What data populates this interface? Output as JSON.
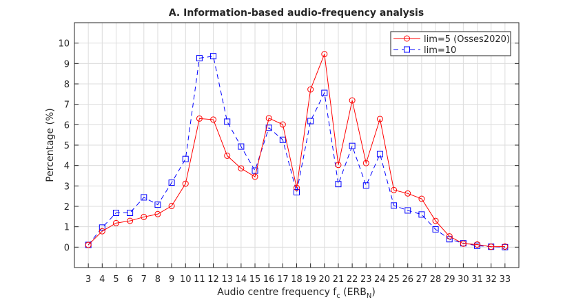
{
  "chart_data": {
    "type": "line",
    "title": "A. Information-based audio-frequency analysis",
    "xlabel": "Audio centre frequency f",
    "xlabel_sub": "c",
    "xlabel_unit_open": " (ERB",
    "xlabel_unit_sub": "N",
    "xlabel_unit_close": ")",
    "ylabel": "Percentage (%)",
    "xlim": [
      2,
      34
    ],
    "ylim": [
      -1,
      11
    ],
    "grid": true,
    "legend_position": "top-right",
    "x": [
      3,
      4,
      5,
      6,
      7,
      8,
      9,
      10,
      11,
      12,
      13,
      14,
      15,
      16,
      17,
      18,
      19,
      20,
      21,
      22,
      23,
      24,
      25,
      26,
      27,
      28,
      29,
      30,
      31,
      32,
      33
    ],
    "xticks": [
      3,
      4,
      5,
      6,
      7,
      8,
      9,
      10,
      11,
      12,
      13,
      14,
      15,
      16,
      17,
      18,
      19,
      20,
      21,
      22,
      23,
      24,
      25,
      26,
      27,
      28,
      29,
      30,
      31,
      32,
      33
    ],
    "yticks": [
      0,
      1,
      2,
      3,
      4,
      5,
      6,
      7,
      8,
      9,
      10
    ],
    "series": [
      {
        "name": "lim=5 (Osses2020)",
        "color": "#ff0000",
        "marker": "circle",
        "linestyle": "solid",
        "values": [
          0.11,
          0.78,
          1.18,
          1.29,
          1.48,
          1.62,
          2.02,
          3.11,
          6.3,
          6.25,
          4.48,
          3.86,
          3.45,
          6.32,
          6.01,
          2.91,
          7.73,
          9.46,
          4.03,
          7.19,
          4.12,
          6.28,
          2.8,
          2.63,
          2.37,
          1.29,
          0.53,
          0.17,
          0.13,
          0.02,
          0.03
        ]
      },
      {
        "name": "lim=10",
        "color": "#0000ff",
        "marker": "square",
        "linestyle": "dashed",
        "values": [
          0.11,
          0.96,
          1.68,
          1.68,
          2.44,
          2.08,
          3.16,
          4.32,
          9.26,
          9.36,
          6.15,
          4.93,
          3.75,
          5.85,
          5.26,
          2.69,
          6.18,
          7.56,
          3.09,
          4.96,
          3.02,
          4.56,
          2.04,
          1.8,
          1.6,
          0.87,
          0.39,
          0.19,
          0.07,
          0.02,
          0.0
        ]
      }
    ]
  }
}
